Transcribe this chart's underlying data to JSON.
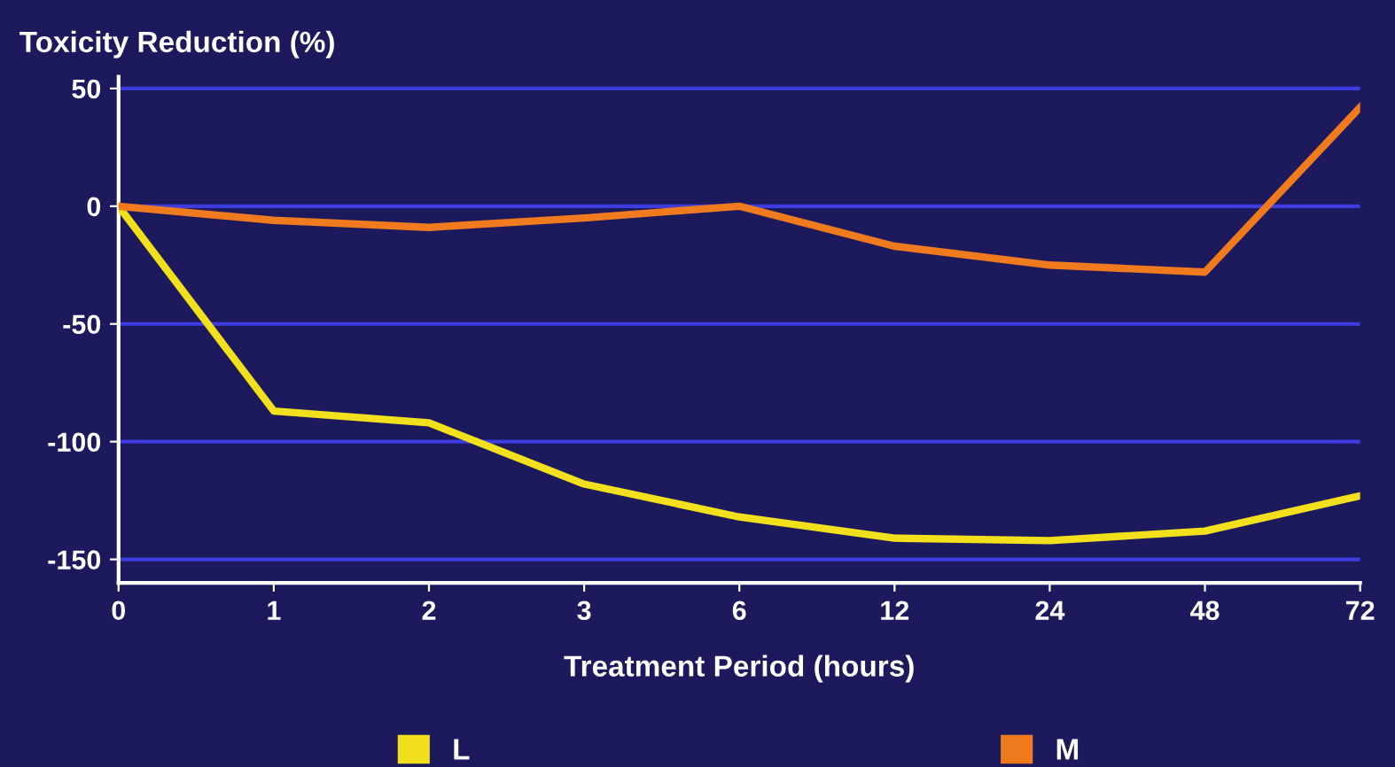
{
  "chart_data": {
    "type": "line",
    "title": "Toxicity Reduction (%)",
    "xlabel": "Treatment Period (hours)",
    "categories": [
      "0",
      "1",
      "2",
      "3",
      "6",
      "12",
      "24",
      "48",
      "72"
    ],
    "series": [
      {
        "name": "L",
        "color": "#f2e01c",
        "values": [
          0,
          -87,
          -92,
          -118,
          -132,
          -141,
          -142,
          -138,
          -123
        ]
      },
      {
        "name": "M",
        "color": "#f07a1e",
        "values": [
          0,
          -6,
          -9,
          -5,
          0,
          -17,
          -25,
          -28,
          42
        ]
      }
    ],
    "ylim": [
      -160,
      55
    ],
    "yticks": [
      50,
      0,
      -50,
      -100,
      -150
    ],
    "grid": "y",
    "legend": "bottom",
    "marker": "none",
    "line_style": "solid"
  }
}
